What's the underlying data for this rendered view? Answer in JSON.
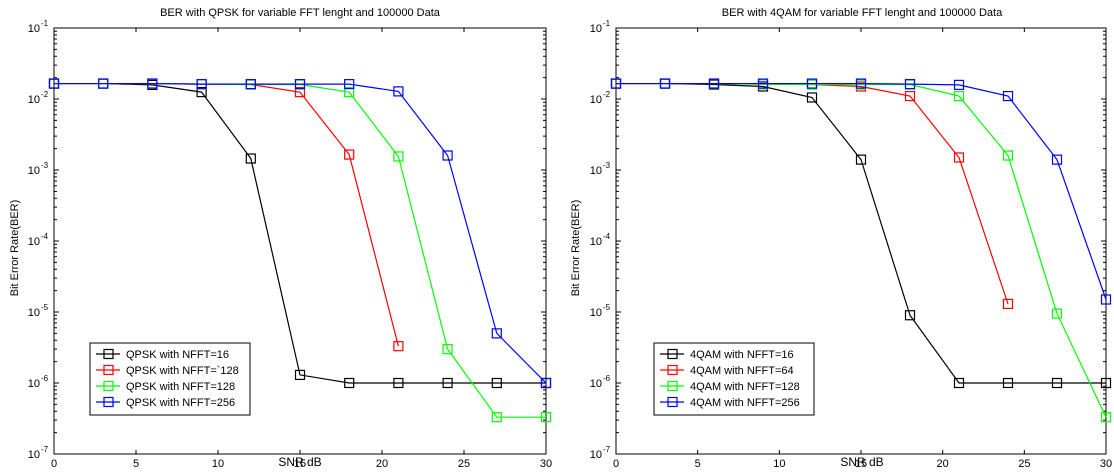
{
  "chart_data": [
    {
      "type": "line",
      "title": "BER with QPSK for variable  FFT lenght and 100000 Data",
      "xlabel": "SNR dB",
      "ylabel": "Bit Error Rate(BER)",
      "xlim": [
        0,
        30
      ],
      "ylim": [
        1e-07,
        0.1
      ],
      "yscale": "log",
      "x_ticks": [
        0,
        5,
        10,
        15,
        20,
        25,
        30
      ],
      "y_ticks": [
        {
          "value": 0.1,
          "label": "10",
          "exp": "-1"
        },
        {
          "value": 0.01,
          "label": "10",
          "exp": "-2"
        },
        {
          "value": 0.001,
          "label": "10",
          "exp": "-3"
        },
        {
          "value": 0.0001,
          "label": "10",
          "exp": "-4"
        },
        {
          "value": 1e-05,
          "label": "10",
          "exp": "-5"
        },
        {
          "value": 1e-06,
          "label": "10",
          "exp": "-6"
        },
        {
          "value": 1e-07,
          "label": "10",
          "exp": "-7"
        }
      ],
      "grid": false,
      "legend_position": "bottom-left",
      "series": [
        {
          "name": "QPSK with NFFT=16",
          "color": "#000000",
          "x": [
            0,
            3,
            6,
            9,
            12,
            15,
            18,
            21,
            24,
            27,
            30
          ],
          "y": [
            0.0165,
            0.0165,
            0.0158,
            0.0125,
            0.00145,
            1.3e-06,
            1e-06,
            1e-06,
            1e-06,
            1e-06,
            1e-06
          ]
        },
        {
          "name": "QPSK with NFFT=`128",
          "color": "#ff0000",
          "x": [
            0,
            3,
            6,
            9,
            12,
            15,
            18,
            21
          ],
          "y": [
            0.0165,
            0.0165,
            0.0165,
            0.0162,
            0.016,
            0.0125,
            0.00165,
            3.3e-06
          ]
        },
        {
          "name": "QPSK with NFFT=128",
          "color": "#00ff00",
          "x": [
            0,
            3,
            6,
            9,
            12,
            15,
            18,
            21,
            24,
            27,
            30
          ],
          "y": [
            0.0165,
            0.0165,
            0.0165,
            0.0162,
            0.016,
            0.016,
            0.0125,
            0.00155,
            3e-06,
            3.3e-07,
            3.3e-07
          ]
        },
        {
          "name": "QPSK with NFFT=256",
          "color": "#0000ff",
          "x": [
            0,
            3,
            6,
            9,
            12,
            15,
            18,
            21,
            24,
            27,
            30
          ],
          "y": [
            0.0165,
            0.0165,
            0.0165,
            0.0162,
            0.0162,
            0.0162,
            0.0162,
            0.0128,
            0.0016,
            5e-06,
            1e-06
          ]
        }
      ]
    },
    {
      "type": "line",
      "title": "BER with 4QAM for variable  FFT lenght and 100000 Data",
      "xlabel": "SNR dB",
      "ylabel": "Bit Error Rate(BER)",
      "xlim": [
        0,
        30
      ],
      "ylim": [
        1e-07,
        0.1
      ],
      "yscale": "log",
      "x_ticks": [
        0,
        5,
        10,
        15,
        20,
        25,
        30
      ],
      "y_ticks": [
        {
          "value": 0.1,
          "label": "10",
          "exp": "-1"
        },
        {
          "value": 0.01,
          "label": "10",
          "exp": "-2"
        },
        {
          "value": 0.001,
          "label": "10",
          "exp": "-3"
        },
        {
          "value": 0.0001,
          "label": "10",
          "exp": "-4"
        },
        {
          "value": 1e-05,
          "label": "10",
          "exp": "-5"
        },
        {
          "value": 1e-06,
          "label": "10",
          "exp": "-6"
        },
        {
          "value": 1e-07,
          "label": "10",
          "exp": "-7"
        }
      ],
      "grid": false,
      "legend_position": "bottom-left",
      "series": [
        {
          "name": "4QAM with NFFT=16",
          "color": "#000000",
          "x": [
            0,
            3,
            6,
            9,
            12,
            15,
            18,
            21,
            24,
            27,
            30
          ],
          "y": [
            0.0165,
            0.0165,
            0.016,
            0.015,
            0.0105,
            0.0014,
            9e-06,
            1e-06,
            1e-06,
            1e-06,
            1e-06
          ]
        },
        {
          "name": "4QAM with NFFT=64",
          "color": "#ff0000",
          "x": [
            0,
            3,
            6,
            9,
            12,
            15,
            18,
            21,
            24
          ],
          "y": [
            0.0165,
            0.0165,
            0.0165,
            0.0162,
            0.016,
            0.015,
            0.011,
            0.0015,
            1.3e-05
          ]
        },
        {
          "name": "4QAM with NFFT=128",
          "color": "#00ff00",
          "x": [
            0,
            3,
            6,
            9,
            12,
            15,
            18,
            21,
            24,
            27,
            30
          ],
          "y": [
            0.0165,
            0.0165,
            0.0165,
            0.0162,
            0.016,
            0.016,
            0.016,
            0.011,
            0.0016,
            9.5e-06,
            3.3e-07
          ]
        },
        {
          "name": "4QAM with NFFT=256",
          "color": "#0000ff",
          "x": [
            0,
            3,
            6,
            9,
            12,
            15,
            18,
            21,
            24,
            27,
            30
          ],
          "y": [
            0.0165,
            0.0165,
            0.0165,
            0.0165,
            0.0165,
            0.0165,
            0.0162,
            0.0158,
            0.011,
            0.0014,
            1.5e-05
          ]
        }
      ]
    }
  ]
}
